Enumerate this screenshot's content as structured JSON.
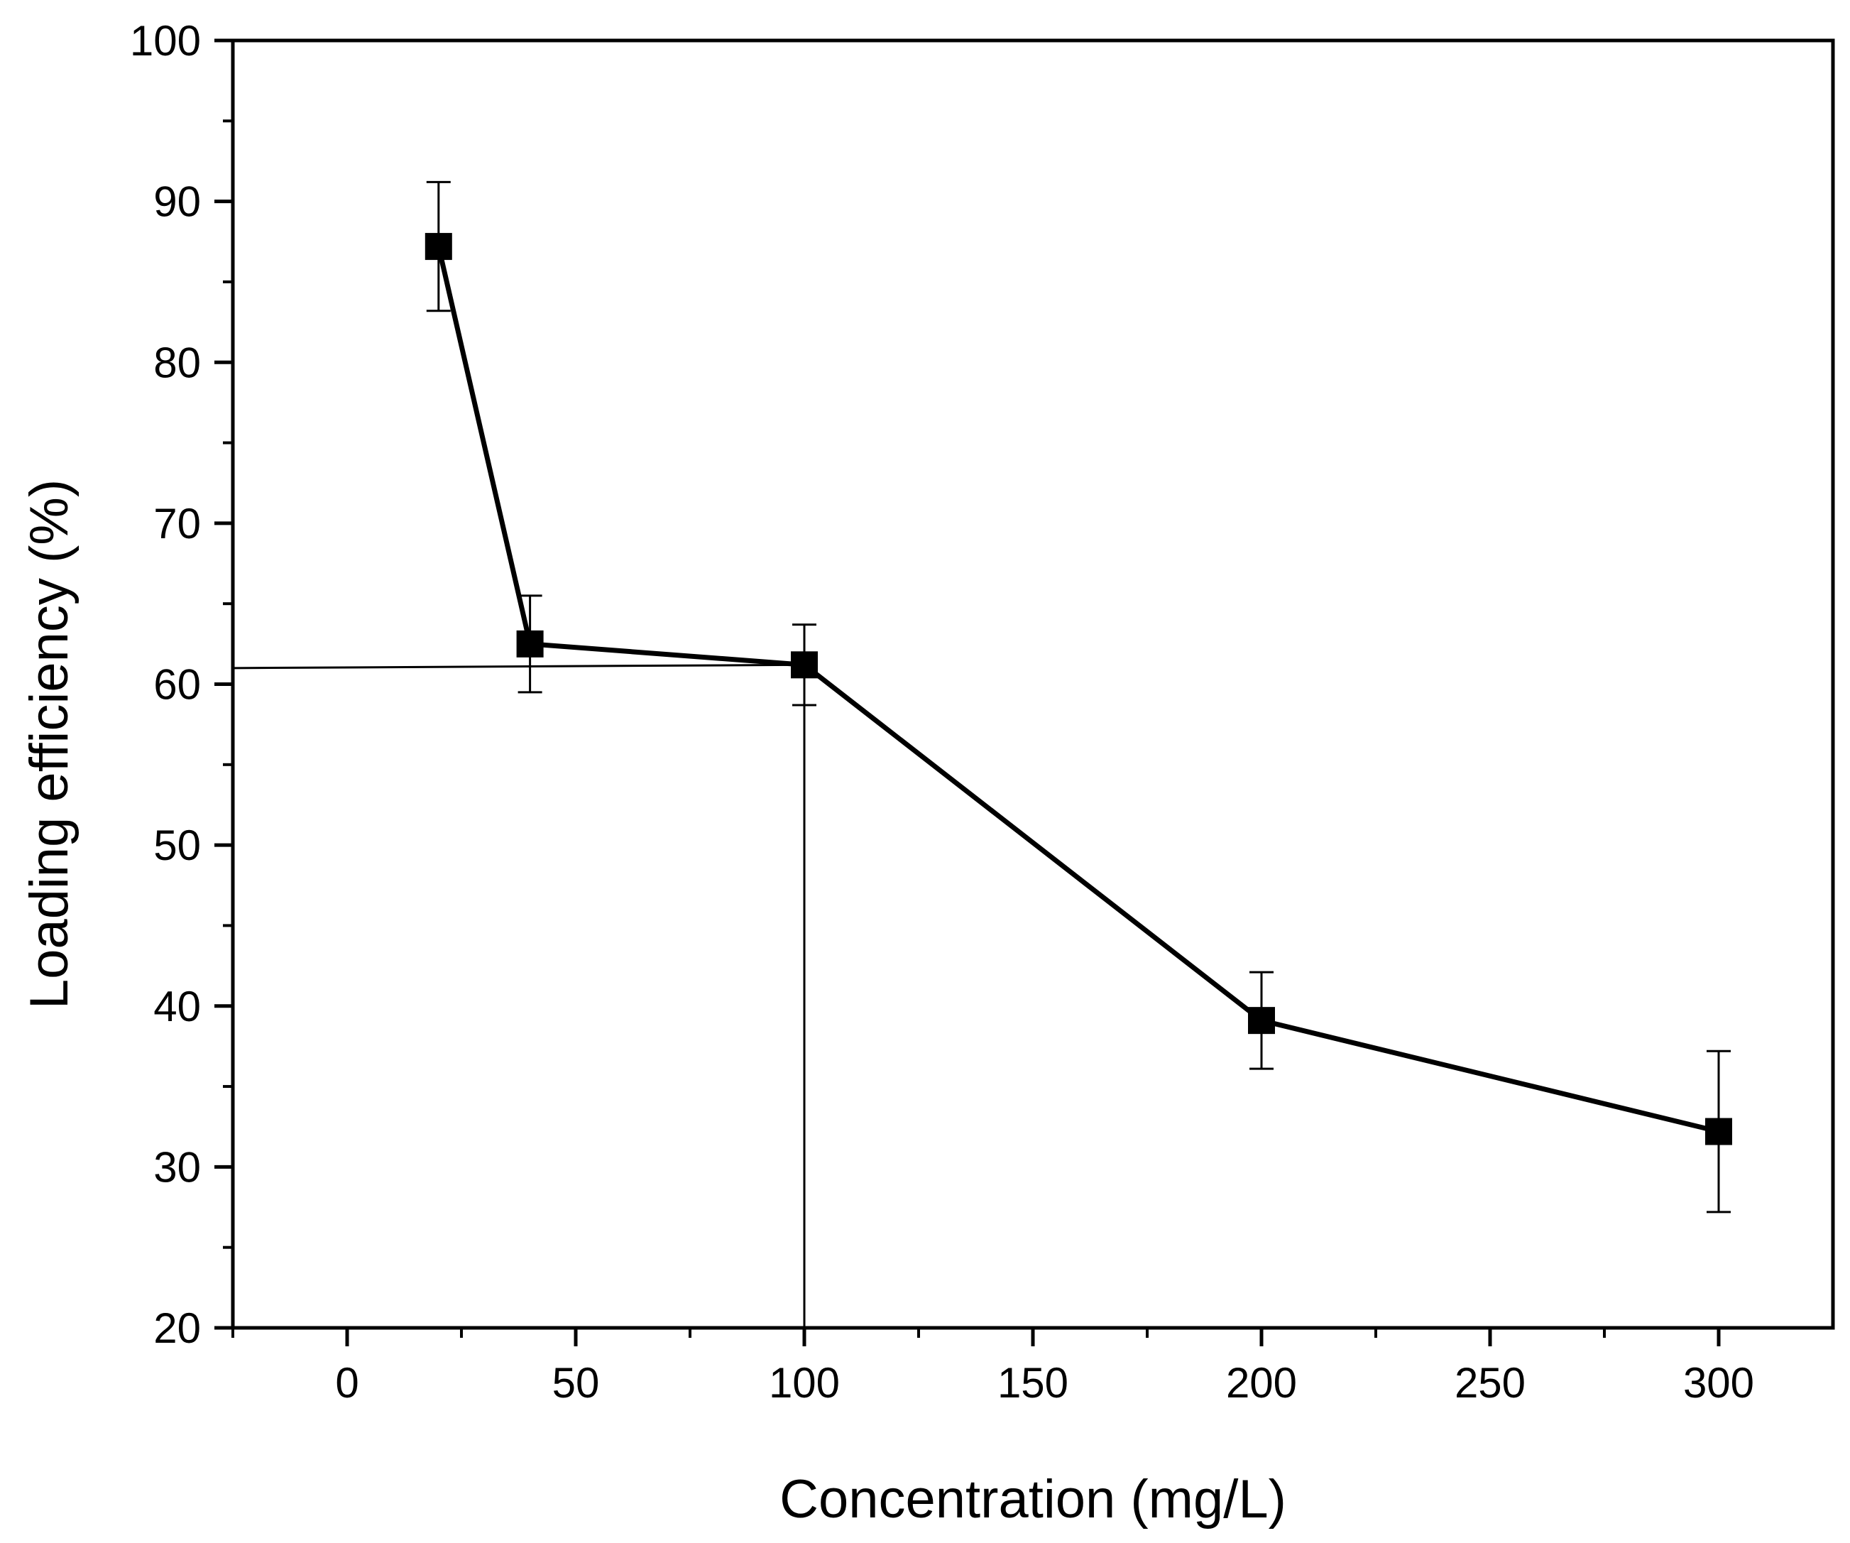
{
  "chart_data": {
    "type": "line",
    "title": "",
    "xlabel": "Concentration (mg/L)",
    "ylabel": "Loading efficiency (%)",
    "xlim": [
      -25,
      325
    ],
    "ylim": [
      20,
      100
    ],
    "x_ticks": [
      0,
      50,
      100,
      150,
      200,
      250,
      300
    ],
    "x_tick_labels": [
      "0",
      "50",
      "100",
      "150",
      "200",
      "250",
      "300"
    ],
    "x_minor_ticks": [
      -25,
      25,
      75,
      125,
      175,
      225,
      275
    ],
    "y_ticks": [
      20,
      30,
      40,
      50,
      60,
      70,
      80,
      90,
      100
    ],
    "y_tick_labels": [
      "20",
      "30",
      "40",
      "50",
      "60",
      "70",
      "80",
      "90",
      "100"
    ],
    "y_minor_ticks": [
      25,
      35,
      45,
      55,
      65,
      75,
      85,
      95
    ],
    "grid": false,
    "legend": "none",
    "series": [
      {
        "name": "Loading efficiency",
        "marker": "square",
        "color": "#000000",
        "x": [
          20,
          40,
          100,
          200,
          300
        ],
        "y": [
          87.2,
          62.5,
          61.2,
          39.1,
          32.2
        ],
        "error": [
          4.0,
          3.0,
          2.5,
          3.0,
          5.0
        ]
      }
    ],
    "reference_lines": [
      {
        "x": [
          -25,
          100
        ],
        "y": [
          61.0,
          61.2
        ]
      },
      {
        "x": [
          100,
          100
        ],
        "y": [
          20,
          61.2
        ]
      }
    ],
    "colors": {
      "axis": "#000000",
      "line": "#000000",
      "marker": "#000000",
      "background": "#ffffff"
    }
  }
}
